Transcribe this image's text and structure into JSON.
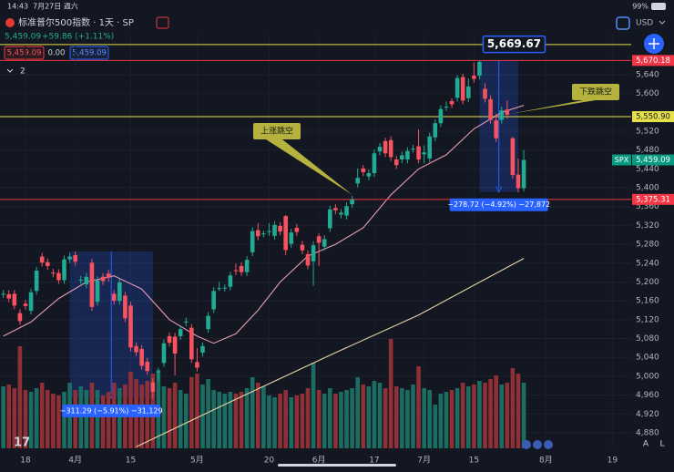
{
  "status_bar": {
    "time": "14:43",
    "date": "7月27日 週六",
    "battery": "99%"
  },
  "header": {
    "title": "标准普尔500指数 · 1天 · SP",
    "last": "5,459.09",
    "change": "+59.86 (+1.11%)",
    "bid": "5,459.09",
    "spread": "0.00",
    "ask": "5,459.09",
    "indicator_count": "2",
    "currency": "USD"
  },
  "chart_data": {
    "type": "candlestick",
    "xlim": [
      -0.6,
      113.4
    ],
    "xticks": [
      {
        "value": 4,
        "label": "18"
      },
      {
        "value": 13,
        "label": "4月"
      },
      {
        "value": 23,
        "label": "15"
      },
      {
        "value": 35,
        "label": "5月"
      },
      {
        "value": 48,
        "label": "20"
      },
      {
        "value": 57,
        "label": "6月"
      },
      {
        "value": 67,
        "label": "17"
      },
      {
        "value": 76,
        "label": "7月"
      },
      {
        "value": 85,
        "label": "15"
      },
      {
        "value": 98,
        "label": "8月"
      },
      {
        "value": 110,
        "label": "19"
      }
    ],
    "ylim": [
      4847,
      5725
    ],
    "yticks": [
      {
        "value": 5640,
        "label": "5,640"
      },
      {
        "value": 5600,
        "label": "5,600"
      },
      {
        "value": 5520,
        "label": "5,520"
      },
      {
        "value": 5480,
        "label": "5,480"
      },
      {
        "value": 5440,
        "label": "5,440"
      },
      {
        "value": 5400,
        "label": "5,400"
      },
      {
        "value": 5360,
        "label": "5,360"
      },
      {
        "value": 5320,
        "label": "5,320"
      },
      {
        "value": 5280,
        "label": "5,280"
      },
      {
        "value": 5240,
        "label": "5,240"
      },
      {
        "value": 5200,
        "label": "5,200"
      },
      {
        "value": 5160,
        "label": "5,160"
      },
      {
        "value": 5120,
        "label": "5,120"
      },
      {
        "value": 5080,
        "label": "5,080"
      },
      {
        "value": 5040,
        "label": "5,040"
      },
      {
        "value": 5000,
        "label": "5,000"
      },
      {
        "value": 4960,
        "label": "4,960"
      },
      {
        "value": 4920,
        "label": "4,920"
      },
      {
        "value": 4880,
        "label": "4,880"
      }
    ],
    "grid": true,
    "up_color": "#22ab94",
    "down_color": "#f7525f",
    "open": [
      5174,
      5174,
      5175,
      5134,
      5154,
      5139,
      5181,
      5254,
      5242,
      5220,
      5219,
      5204,
      5248,
      5257,
      5204,
      5195,
      5241,
      5158,
      5211,
      5218,
      5175,
      5160,
      5171,
      5150,
      5064,
      5058,
      5031,
      4987,
      5009,
      5028,
      5085,
      5084,
      5085,
      5114,
      5103,
      5030,
      5050,
      5100,
      5142,
      5187,
      5188,
      5190,
      5225,
      5234,
      5221,
      5263,
      5310,
      5303,
      5306,
      5298,
      5319,
      5340,
      5281,
      5315,
      5279,
      5259,
      5244,
      5297,
      5275,
      5314,
      5357,
      5343,
      5341,
      5365,
      5409,
      5441,
      5424,
      5431,
      5477,
      5499,
      5501,
      5460,
      5460,
      5460,
      5482,
      5488,
      5471,
      5462,
      5507,
      5537,
      5572,
      5584,
      5591,
      5635,
      5590,
      5638,
      5638,
      5610,
      5588,
      5543,
      5544,
      5566,
      5505,
      5428,
      5399
    ],
    "high": [
      5183,
      5182,
      5183,
      5142,
      5162,
      5186,
      5232,
      5262,
      5250,
      5228,
      5227,
      5256,
      5262,
      5265,
      5213,
      5219,
      5249,
      5212,
      5219,
      5226,
      5183,
      5207,
      5179,
      5158,
      5072,
      5066,
      5039,
      4995,
      5018,
      5078,
      5093,
      5092,
      5108,
      5124,
      5111,
      5060,
      5072,
      5136,
      5189,
      5200,
      5195,
      5222,
      5239,
      5242,
      5255,
      5316,
      5325,
      5309,
      5325,
      5329,
      5327,
      5342,
      5313,
      5323,
      5287,
      5267,
      5286,
      5303,
      5299,
      5362,
      5365,
      5355,
      5369,
      5383,
      5441,
      5448,
      5439,
      5481,
      5495,
      5506,
      5509,
      5468,
      5477,
      5486,
      5491,
      5524,
      5490,
      5517,
      5545,
      5575,
      5583,
      5590,
      5639,
      5642,
      5632,
      5666,
      5669.67,
      5622,
      5596,
      5557,
      5572,
      5585,
      5508,
      5462,
      5480
    ],
    "low": [
      5166,
      5157,
      5142,
      5109,
      5141,
      5131,
      5173,
      5233,
      5226,
      5210,
      5196,
      5196,
      5240,
      5235,
      5196,
      5187,
      5139,
      5150,
      5194,
      5201,
      5152,
      5152,
      5115,
      5053,
      5043,
      5014,
      5003,
      4953,
      4990,
      5020,
      5063,
      5002,
      5077,
      5106,
      5028,
      5010,
      5042,
      5092,
      5134,
      5181,
      5180,
      5182,
      5215,
      5213,
      5213,
      5255,
      5289,
      5295,
      5298,
      5290,
      5299,
      5257,
      5273,
      5298,
      5259,
      5227,
      5192,
      5234,
      5267,
      5306,
      5344,
      5335,
      5333,
      5357,
      5401,
      5425,
      5416,
      5423,
      5469,
      5465,
      5457,
      5440,
      5452,
      5452,
      5475,
      5452,
      5452,
      5454,
      5499,
      5529,
      5563,
      5569,
      5583,
      5577,
      5582,
      5623,
      5630,
      5581,
      5536,
      5497,
      5536,
      5547,
      5419,
      5390,
      5392
    ],
    "close": [
      5175,
      5165,
      5150,
      5117,
      5149,
      5178,
      5224,
      5241,
      5234,
      5218,
      5204,
      5248,
      5254,
      5243,
      5205,
      5211,
      5147,
      5204,
      5202,
      5209,
      5160,
      5199,
      5123,
      5061,
      5051,
      5022,
      5011,
      4967,
      5010,
      5070,
      5071,
      5048,
      5100,
      5116,
      5036,
      5018,
      5064,
      5128,
      5181,
      5187,
      5188,
      5214,
      5223,
      5221,
      5247,
      5308,
      5297,
      5303,
      5308,
      5321,
      5307,
      5268,
      5305,
      5306,
      5267,
      5235,
      5278,
      5283,
      5291,
      5354,
      5352,
      5347,
      5361,
      5375,
      5421,
      5433,
      5431,
      5473,
      5487,
      5473,
      5465,
      5448,
      5469,
      5478,
      5483,
      5460,
      5475,
      5509,
      5537,
      5567,
      5572,
      5577,
      5633,
      5585,
      5615,
      5631,
      5667,
      5589,
      5544,
      5505,
      5564,
      5555,
      5427,
      5399,
      5459.09
    ],
    "volume": {
      "ylim": [
        0,
        8
      ],
      "up_color": "#1b6d62",
      "down_color": "#8f2f36",
      "values": [
        3.4,
        3.5,
        3.3,
        5.6,
        3.2,
        3.1,
        3.3,
        3.6,
        3.2,
        3.0,
        2.9,
        3.1,
        3.6,
        3.2,
        3.4,
        3.2,
        3.6,
        3.2,
        2.9,
        3.1,
        3.6,
        3.3,
        3.5,
        4.2,
        3.8,
        3.5,
        3.7,
        4.1,
        4.3,
        3.4,
        3.3,
        3.6,
        3.2,
        3.0,
        3.9,
        4.1,
        3.5,
        3.8,
        3.2,
        3.1,
        3.0,
        3.1,
        3.0,
        3.1,
        3.3,
        3.9,
        3.6,
        3.4,
        2.9,
        2.8,
        3.0,
        3.2,
        2.8,
        2.9,
        3.0,
        3.3,
        4.7,
        3.2,
        3.0,
        3.3,
        3.0,
        3.1,
        3.2,
        3.3,
        3.9,
        3.5,
        3.4,
        3.7,
        3.6,
        3.3,
        6.0,
        3.4,
        3.3,
        3.2,
        3.5,
        4.5,
        3.3,
        3.2,
        2.4,
        3.0,
        3.1,
        3.2,
        3.3,
        3.6,
        3.4,
        3.5,
        3.7,
        3.6,
        3.8,
        4.0,
        3.5,
        3.6,
        4.4,
        4.1,
        3.6
      ]
    },
    "moving_averages": [
      {
        "color": "#e89bb0",
        "x": [
          0,
          5,
          10,
          15,
          20,
          25,
          30,
          35,
          38,
          42,
          46,
          50,
          55,
          60,
          65,
          70,
          75,
          80,
          85,
          90,
          94
        ],
        "values": [
          5085,
          5115,
          5165,
          5200,
          5213,
          5185,
          5120,
          5085,
          5070,
          5090,
          5140,
          5200,
          5255,
          5280,
          5315,
          5385,
          5440,
          5470,
          5525,
          5560,
          5575
        ]
      },
      {
        "color": "#e8d3a6",
        "x": [
          24,
          40,
          60,
          75,
          94
        ],
        "values": [
          4850,
          4940,
          5050,
          5130,
          5250
        ]
      }
    ],
    "price_lines": [
      {
        "value": 5704,
        "color": "#e5e04a"
      },
      {
        "value": 5670.18,
        "label": "5,670.18",
        "color": "#f23645"
      },
      {
        "value": 5550.9,
        "label": "5,550.90",
        "color": "#e5e04a"
      },
      {
        "value": 5375.31,
        "label": "5,375.31",
        "color": "#f23645"
      }
    ],
    "current_price": {
      "value": 5459.09,
      "label": "5,459.09",
      "symbol": "SPX",
      "color": "#089981"
    },
    "measurements": [
      {
        "from": [
          12,
          5264.85
        ],
        "to": [
          27,
          4953.56
        ],
        "text": "−311.29 (−5.91%) −31,129"
      },
      {
        "from": [
          86,
          5669.67
        ],
        "to": [
          93,
          5390.95
        ],
        "text": "−278.72 (−4.92%) −27,872",
        "start_label": "5,669.67"
      }
    ],
    "annotations": [
      {
        "text": "上涨跳空"
      },
      {
        "text": "下跌跳空"
      }
    ]
  },
  "controls": {
    "auto": "A",
    "log": "L"
  }
}
